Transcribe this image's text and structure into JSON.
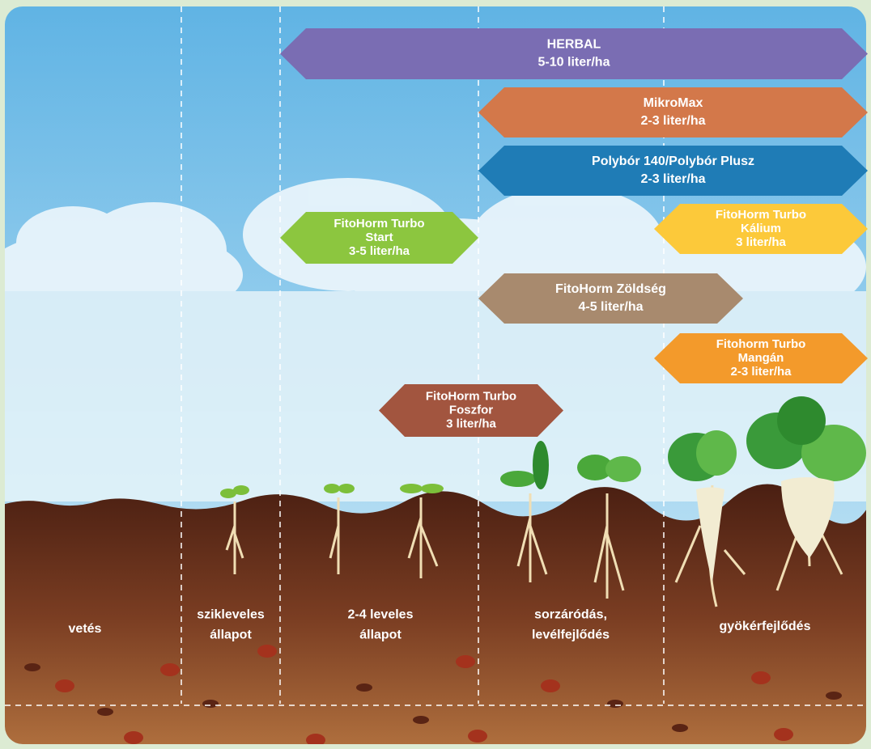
{
  "products": [
    {
      "lines": [
        "HERBAL",
        "5-10 liter/ha"
      ]
    },
    {
      "lines": [
        "MikroMax",
        "2-3 liter/ha"
      ]
    },
    {
      "lines": [
        "Polybór 140/Polybór Plusz",
        "2-3 liter/ha"
      ]
    },
    {
      "lines": [
        "FitoHorm Turbo",
        "Start",
        "3-5 liter/ha"
      ]
    },
    {
      "lines": [
        "FitoHorm Turbo",
        "Kálium",
        "3 liter/ha"
      ]
    },
    {
      "lines": [
        "FitoHorm Zöldség",
        "4-5 liter/ha"
      ]
    },
    {
      "lines": [
        "Fitohorm Turbo",
        "Mangán",
        "2-3 liter/ha"
      ]
    },
    {
      "lines": [
        "FitoHorm Turbo",
        "Foszfor",
        "3 liter/ha"
      ]
    }
  ],
  "stages": [
    {
      "lines": [
        "vetés"
      ]
    },
    {
      "lines": [
        "szikleveles",
        "állapot"
      ]
    },
    {
      "lines": [
        "2-4 leveles",
        "állapot"
      ]
    },
    {
      "lines": [
        "sorzáródás,",
        "levélfejlődés"
      ]
    },
    {
      "lines": [
        "gyökérfejlődés"
      ]
    }
  ]
}
